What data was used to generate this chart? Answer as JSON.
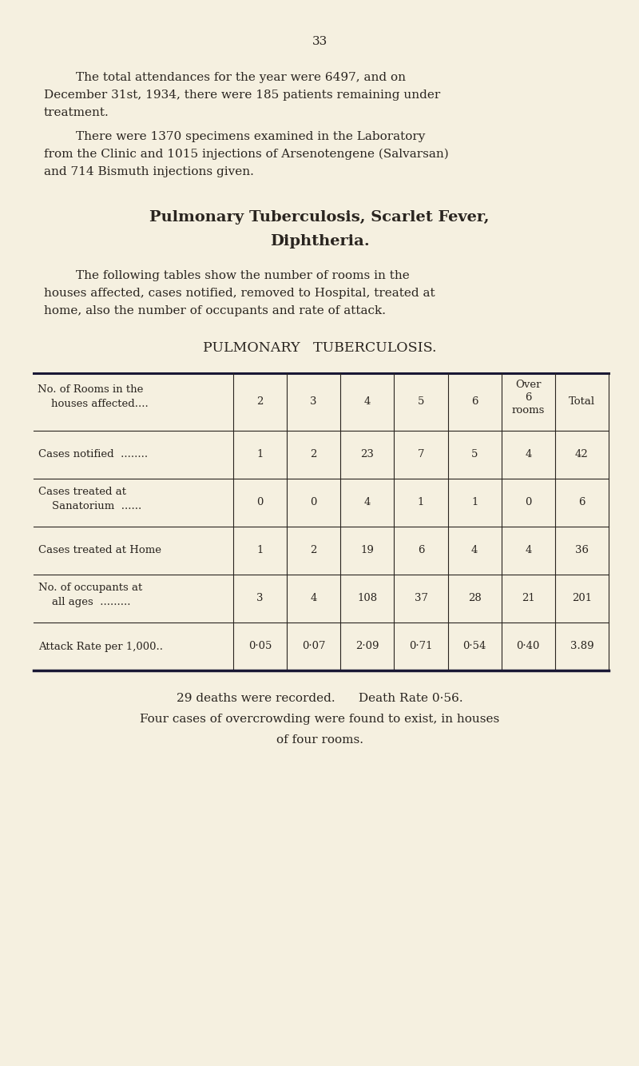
{
  "bg_color": "#f5f0e0",
  "text_color": "#2a2520",
  "page_number": "33",
  "para1_lines": [
    "The total attendances for the year were 6497, and on",
    "December 31st, 1934, there were 185 patients remaining under",
    "treatment."
  ],
  "para2_lines": [
    "There were 1370 specimens examined in the Laboratory",
    "from the Clinic and 1015 injections of Arsenotengene (Salvarsan)",
    "and 714 Bismuth injections given."
  ],
  "section_title_line1": "Pulmonary Tuberculosis, Scarlet Fever,",
  "section_title_line2": "Diphtheria.",
  "intro_lines": [
    "The following tables show the number of rooms in the",
    "houses affected, cases notified, removed to Hospital, treated at",
    "home, also the number of occupants and rate of attack."
  ],
  "table_title": "PULMONARY   TUBERCULOSIS.",
  "col_headers": [
    "2",
    "3",
    "4",
    "5",
    "6",
    "Over\n6\nrooms",
    "Total"
  ],
  "header_row_label1": "No. of Rooms in the",
  "header_row_label2": "    houses affected....",
  "rows": [
    {
      "label_lines": [
        "Cases notified  ........"
      ],
      "values": [
        "1",
        "2",
        "23",
        "7",
        "5",
        "4",
        "42"
      ]
    },
    {
      "label_lines": [
        "Cases treated at",
        "    Sanatorium  ......"
      ],
      "values": [
        "0",
        "0",
        "4",
        "1",
        "1",
        "0",
        "6"
      ]
    },
    {
      "label_lines": [
        "Cases treated at Home"
      ],
      "values": [
        "1",
        "2",
        "19",
        "6",
        "4",
        "4",
        "36"
      ]
    },
    {
      "label_lines": [
        "No. of occupants at",
        "    all ages  ........."
      ],
      "values": [
        "3",
        "4",
        "108",
        "37",
        "28",
        "21",
        "201"
      ]
    },
    {
      "label_lines": [
        "Attack Rate per 1,000.."
      ],
      "values": [
        "0·05",
        "0·07",
        "2·09",
        "0·71",
        "0·54",
        "0·40",
        "3.89"
      ]
    }
  ],
  "footer_line1": "29 deaths were recorded.      Death Rate 0·56.",
  "footer_line2": "Four cases of overcrowding were found to exist, in houses",
  "footer_line3": "of four rooms."
}
